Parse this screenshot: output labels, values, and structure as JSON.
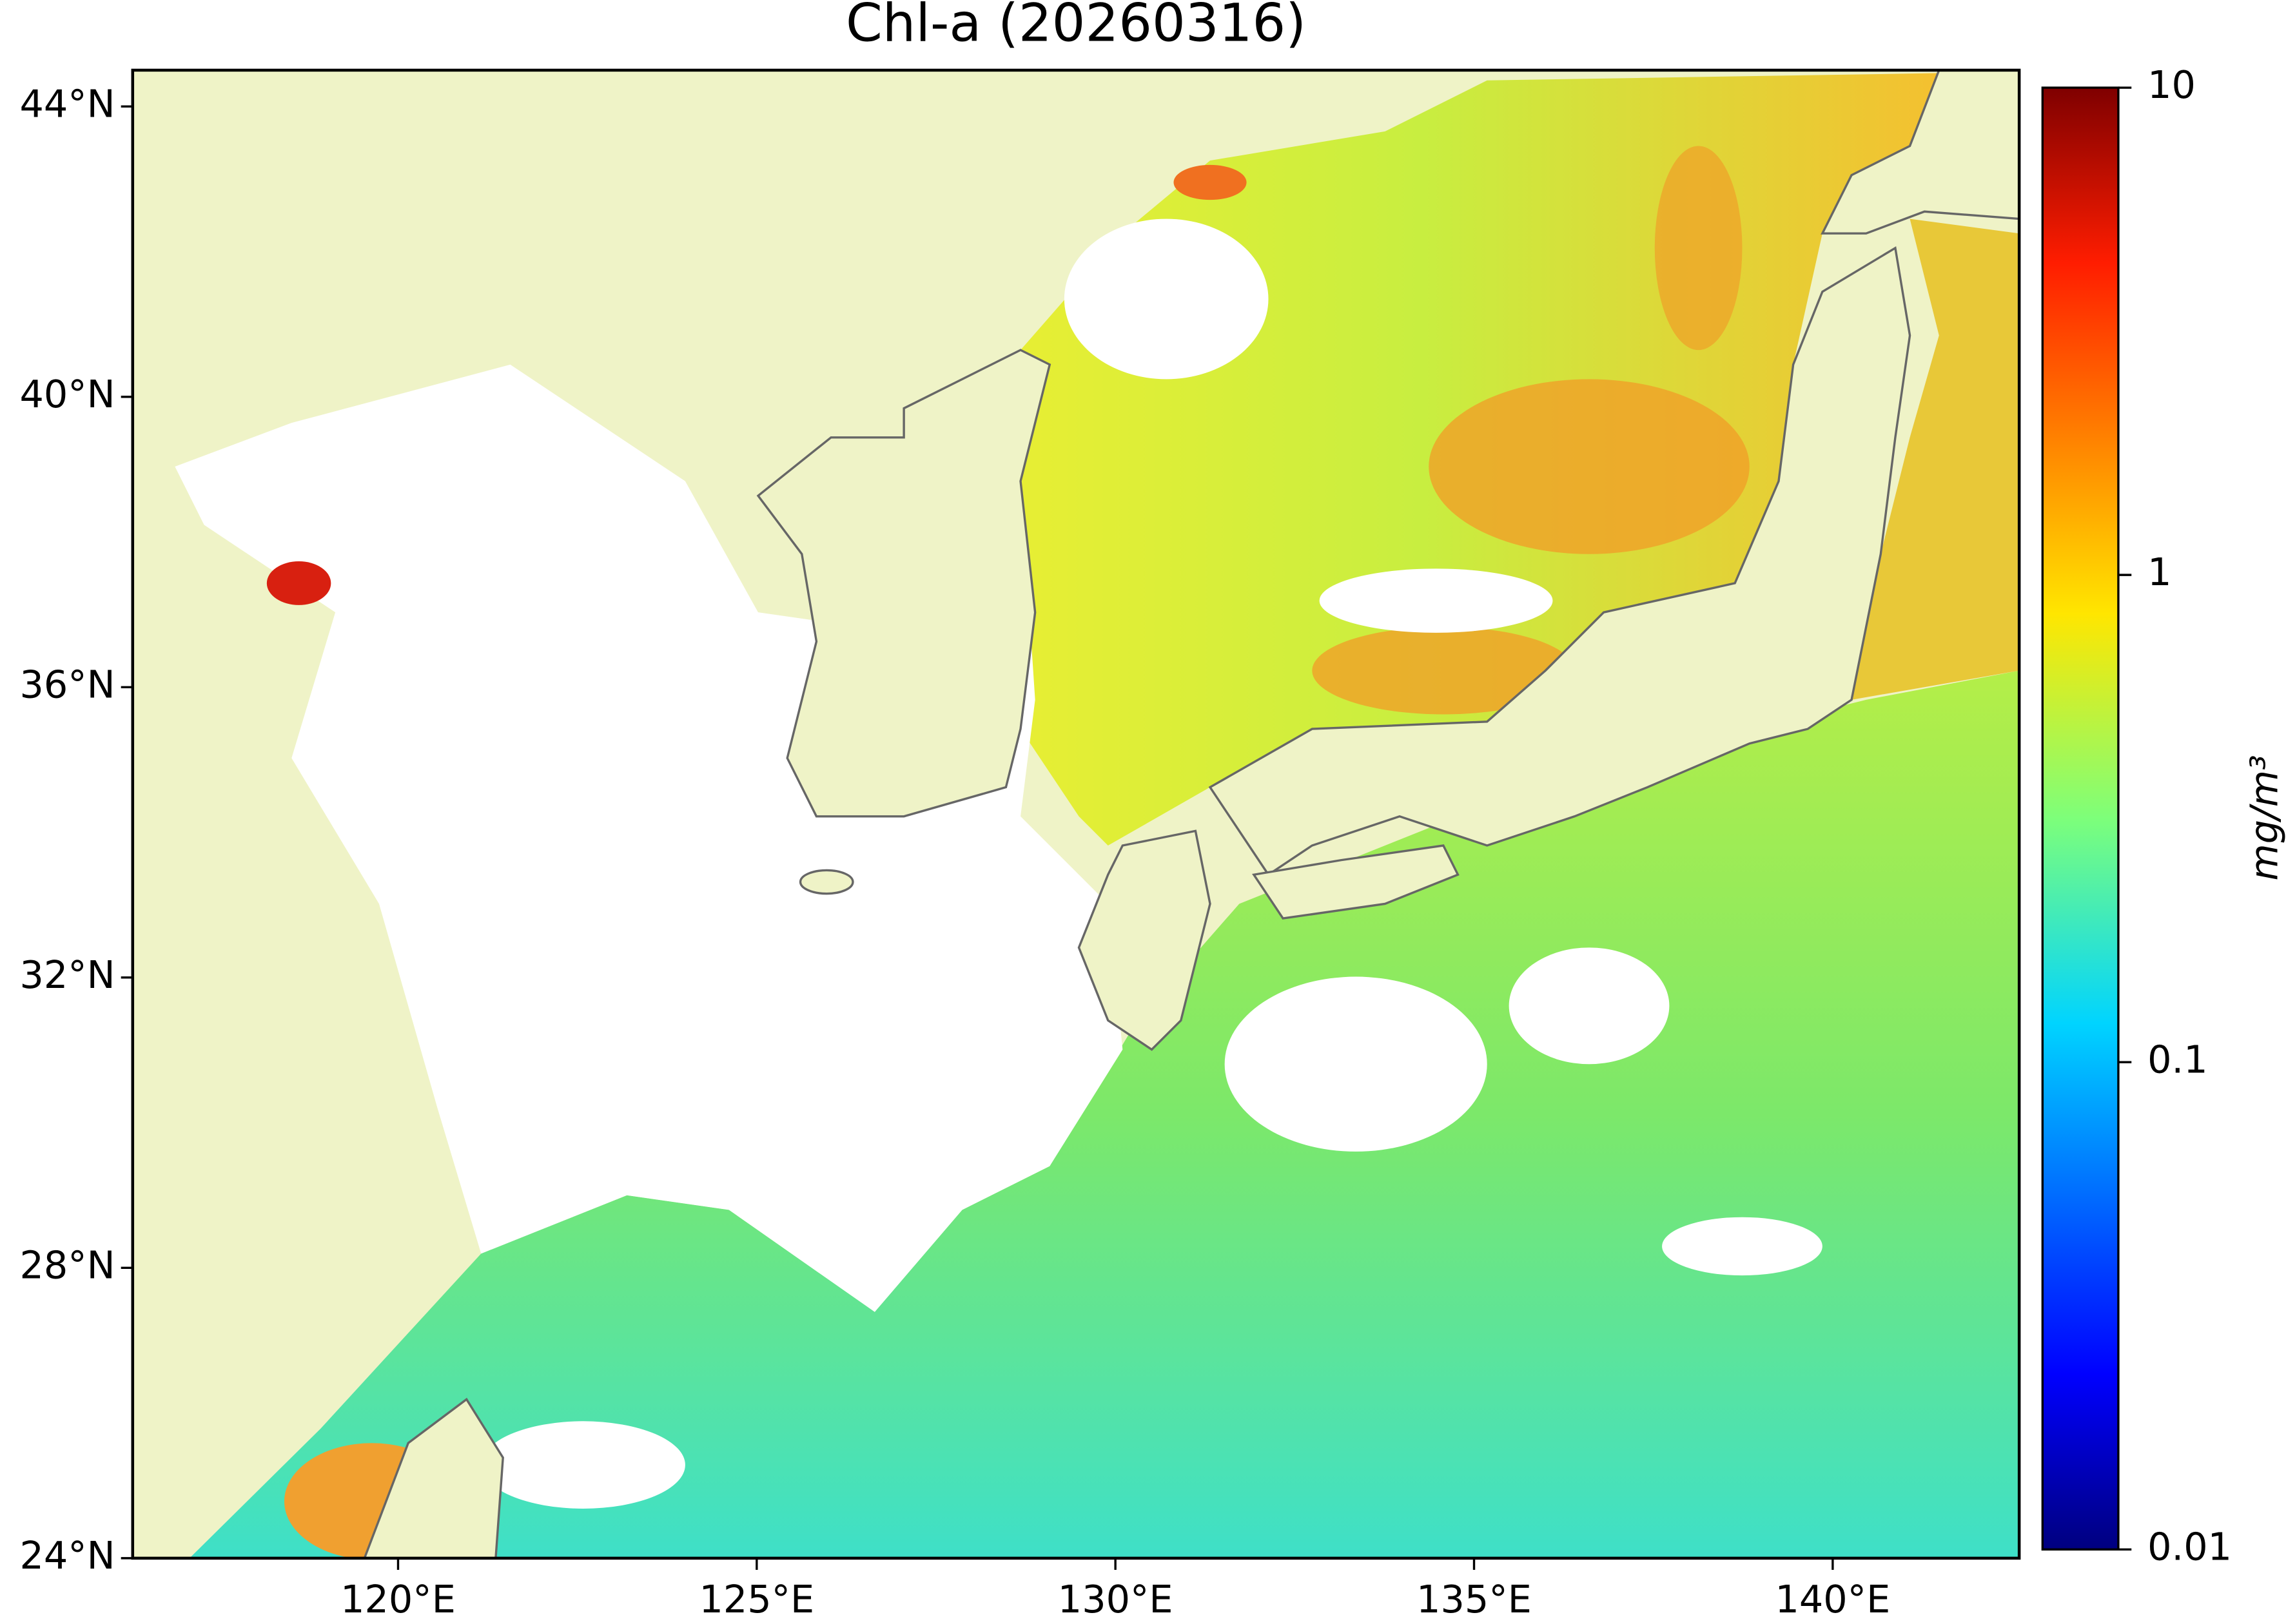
{
  "title": "Chl-a (20260316)",
  "map": {
    "xlim": [
      116.3,
      142.6
    ],
    "ylim": [
      24,
      44.5
    ],
    "xticks": [
      {
        "value": 120,
        "label": "120°E"
      },
      {
        "value": 125,
        "label": "125°E"
      },
      {
        "value": 130,
        "label": "130°E"
      },
      {
        "value": 135,
        "label": "135°E"
      },
      {
        "value": 140,
        "label": "140°E"
      }
    ],
    "yticks": [
      {
        "value": 24,
        "label": "24°N"
      },
      {
        "value": 28,
        "label": "28°N"
      },
      {
        "value": 32,
        "label": "32°N"
      },
      {
        "value": 36,
        "label": "36°N"
      },
      {
        "value": 40,
        "label": "40°N"
      },
      {
        "value": 44,
        "label": "44°N"
      }
    ]
  },
  "colorbar": {
    "label": "mg/m³",
    "scale": "log",
    "lim": [
      0.01,
      10
    ],
    "ticks": [
      0.01,
      0.1,
      1,
      10
    ]
  }
}
